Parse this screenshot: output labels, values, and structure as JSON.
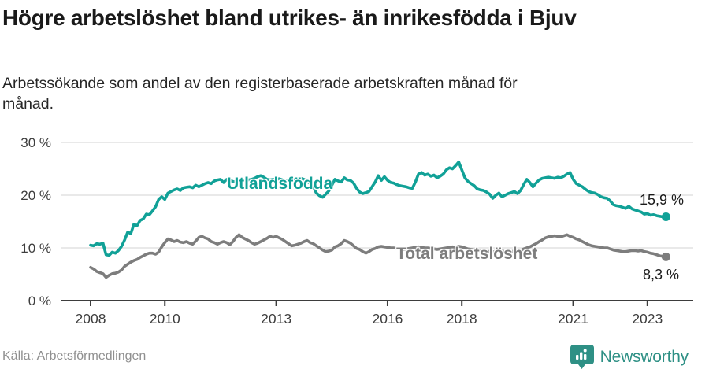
{
  "header": {
    "title": "Högre arbetslöshet bland utrikes- än inrikesfödda i Bjuv",
    "subtitle": "Arbetssökande som andel av den registerbaserade arbetskraften månad för månad."
  },
  "footer": {
    "source": "Källa: Arbetsförmedlingen",
    "brand": "Newsworthy",
    "brand_icon": "bar-chart-pin-icon",
    "brand_color": "#2e9085"
  },
  "chart_data": {
    "type": "line",
    "title": "Högre arbetslöshet bland utrikes- än inrikesfödda i Bjuv",
    "unit": "%",
    "frequency": "monthly",
    "x_start": "2008-01",
    "x_end": "2023-07",
    "ylim": [
      0,
      30
    ],
    "grid": "horizontal",
    "legend_position": "inline-labels",
    "yticks": [
      {
        "value": 0,
        "label": "0 %"
      },
      {
        "value": 10,
        "label": "10 %"
      },
      {
        "value": 20,
        "label": "20 %"
      },
      {
        "value": 30,
        "label": "30 %"
      }
    ],
    "xticks": [
      {
        "year": 2008,
        "label": "2008"
      },
      {
        "year": 2010,
        "label": "2010"
      },
      {
        "year": 2013,
        "label": "2013"
      },
      {
        "year": 2016,
        "label": "2016"
      },
      {
        "year": 2018,
        "label": "2018"
      },
      {
        "year": 2021,
        "label": "2021"
      },
      {
        "year": 2023,
        "label": "2023"
      }
    ],
    "series": [
      {
        "name": "Utlandsfödda",
        "color": "#11a197",
        "end_value": 15.9,
        "end_label": "15,9 %",
        "values": [
          10.5,
          10.4,
          10.8,
          10.7,
          10.9,
          8.7,
          8.6,
          9.2,
          9.0,
          9.5,
          10.3,
          11.5,
          13.0,
          12.7,
          14.5,
          14.2,
          15.2,
          15.5,
          16.4,
          16.3,
          17.0,
          17.8,
          19.2,
          19.7,
          19.2,
          20.4,
          20.7,
          21.0,
          21.2,
          20.9,
          21.4,
          21.5,
          21.6,
          21.4,
          21.9,
          21.6,
          21.9,
          22.2,
          22.4,
          22.2,
          22.7,
          22.9,
          23.0,
          22.4,
          23.0,
          22.8,
          22.6,
          22.5,
          22.6,
          22.8,
          22.7,
          22.9,
          23.0,
          23.2,
          23.5,
          23.7,
          23.4,
          23.0,
          22.9,
          23.0,
          23.0,
          23.1,
          22.9,
          22.8,
          22.9,
          23.0,
          22.9,
          23.1,
          23.2,
          23.0,
          22.6,
          22.2,
          21.5,
          20.4,
          19.9,
          19.6,
          20.2,
          20.8,
          21.9,
          23.0,
          22.7,
          22.5,
          23.3,
          22.9,
          22.8,
          22.3,
          21.3,
          20.6,
          20.3,
          20.5,
          20.7,
          21.6,
          22.5,
          23.7,
          22.8,
          23.5,
          22.8,
          22.4,
          22.3,
          22.0,
          21.8,
          21.7,
          21.6,
          21.4,
          21.3,
          22.5,
          24.0,
          24.3,
          23.8,
          24.0,
          23.6,
          23.8,
          23.3,
          23.6,
          24.0,
          24.8,
          25.2,
          25.0,
          25.6,
          26.3,
          24.8,
          23.3,
          22.6,
          22.2,
          21.8,
          21.2,
          21.0,
          20.9,
          20.6,
          20.2,
          19.4,
          20.0,
          20.4,
          19.7,
          20.0,
          20.3,
          20.5,
          20.7,
          20.3,
          20.9,
          22.0,
          23.0,
          22.4,
          21.6,
          22.3,
          22.9,
          23.2,
          23.3,
          23.4,
          23.3,
          23.2,
          23.4,
          23.3,
          23.6,
          24.0,
          24.3,
          23.0,
          22.2,
          21.9,
          21.6,
          21.1,
          20.7,
          20.5,
          20.4,
          20.1,
          19.7,
          19.5,
          19.4,
          18.9,
          18.2,
          18.0,
          17.9,
          17.7,
          17.5,
          17.9,
          17.4,
          17.2,
          17.0,
          16.8,
          16.4,
          16.5,
          16.2,
          16.3,
          16.1,
          16.0,
          15.9,
          15.9
        ]
      },
      {
        "name": "Total arbetslöshet",
        "color": "#7d7d7d",
        "end_value": 8.3,
        "end_label": "8,3 %",
        "values": [
          6.3,
          6.0,
          5.5,
          5.3,
          5.1,
          4.4,
          4.8,
          5.1,
          5.2,
          5.4,
          5.8,
          6.5,
          6.9,
          7.3,
          7.6,
          7.8,
          8.2,
          8.5,
          8.8,
          9.0,
          9.0,
          8.8,
          9.2,
          10.2,
          11.0,
          11.7,
          11.5,
          11.2,
          11.4,
          11.1,
          11.0,
          11.2,
          10.9,
          10.7,
          11.3,
          12.0,
          12.2,
          11.9,
          11.7,
          11.2,
          11.0,
          10.7,
          11.0,
          11.2,
          11.0,
          10.6,
          11.2,
          12.0,
          12.5,
          12.0,
          11.7,
          11.4,
          11.0,
          10.7,
          10.9,
          11.2,
          11.5,
          11.8,
          12.2,
          12.0,
          12.2,
          11.9,
          11.6,
          11.2,
          10.8,
          10.4,
          10.5,
          10.7,
          10.9,
          11.2,
          11.4,
          11.0,
          10.8,
          10.4,
          10.0,
          9.6,
          9.3,
          9.4,
          9.6,
          10.2,
          10.4,
          10.8,
          11.4,
          11.2,
          10.9,
          10.4,
          9.9,
          9.7,
          9.3,
          9.0,
          9.3,
          9.7,
          9.9,
          10.2,
          10.3,
          10.2,
          10.1,
          10.0,
          10.0,
          9.9,
          9.8,
          9.7,
          9.8,
          9.9,
          10.0,
          10.1,
          10.2,
          10.1,
          10.0,
          10.0,
          9.9,
          9.8,
          9.7,
          9.8,
          9.9,
          10.0,
          10.1,
          10.2,
          10.1,
          10.3,
          10.2,
          10.0,
          9.8,
          9.7,
          9.6,
          9.5,
          9.4,
          9.5,
          9.4,
          9.3,
          9.2,
          9.4,
          9.5,
          9.4,
          9.3,
          9.2,
          9.3,
          9.4,
          9.3,
          9.5,
          9.8,
          10.0,
          10.2,
          10.5,
          10.8,
          11.2,
          11.5,
          11.9,
          12.1,
          12.2,
          12.3,
          12.2,
          12.1,
          12.3,
          12.5,
          12.2,
          12.0,
          11.7,
          11.5,
          11.2,
          10.9,
          10.6,
          10.4,
          10.3,
          10.2,
          10.1,
          10.0,
          10.0,
          9.8,
          9.6,
          9.5,
          9.4,
          9.3,
          9.3,
          9.4,
          9.5,
          9.5,
          9.4,
          9.5,
          9.3,
          9.2,
          9.0,
          8.9,
          8.7,
          8.5,
          8.4,
          8.3
        ]
      }
    ]
  }
}
